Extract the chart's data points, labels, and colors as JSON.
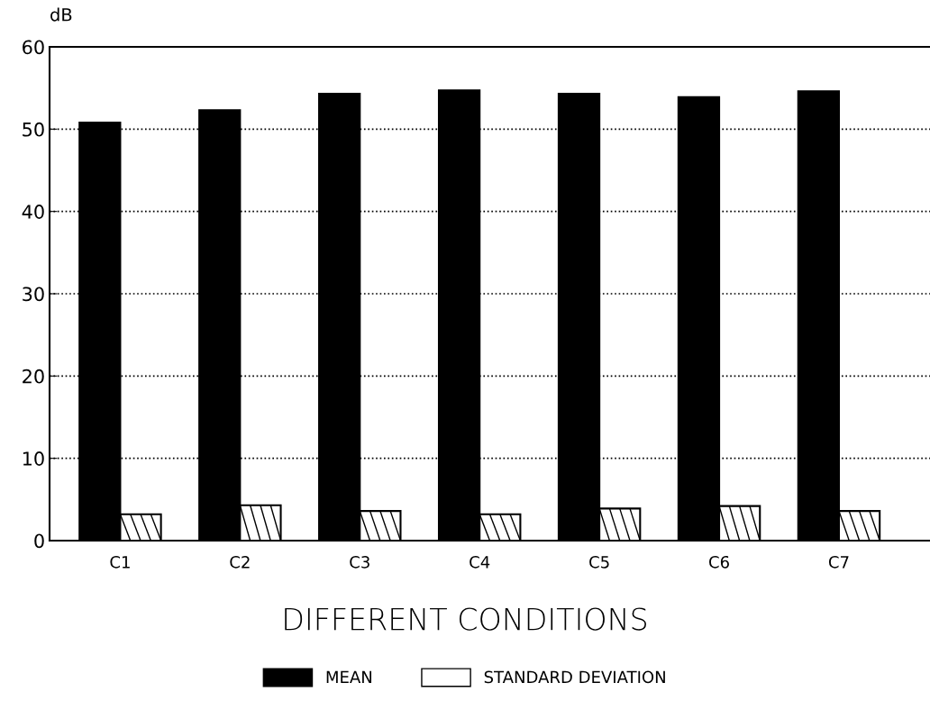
{
  "chart_data": {
    "type": "bar",
    "ylabel": "dB",
    "xlabel": "DIFFERENT CONDITIONS",
    "categories": [
      "C1",
      "C2",
      "C3",
      "C4",
      "C5",
      "C6",
      "C7"
    ],
    "series": [
      {
        "name": "MEAN",
        "color": "#000000",
        "values": [
          50.8,
          52.3,
          54.3,
          54.7,
          54.3,
          53.9,
          54.6
        ]
      },
      {
        "name": "STANDARD DEVIATION",
        "color": "#ffffff",
        "values": [
          3.2,
          4.3,
          3.6,
          3.2,
          3.9,
          4.2,
          3.6
        ]
      }
    ],
    "ylim": [
      0,
      60
    ],
    "yticks": [
      0,
      10,
      20,
      30,
      40,
      50,
      60
    ],
    "grid": "y",
    "legend": "bottom"
  }
}
